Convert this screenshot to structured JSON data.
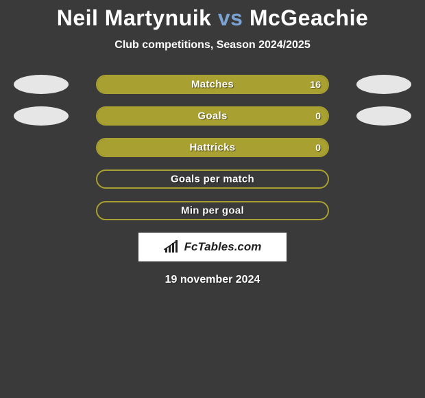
{
  "title": {
    "player1": "Neil Martynuik",
    "vs": "vs",
    "player2": "McGeachie"
  },
  "subtitle": "Club competitions, Season 2024/2025",
  "colors": {
    "bar_border": "#a8a030",
    "bar_fill": "#a8a030",
    "avatar_left": "#e6e6e6",
    "avatar_right": "#e6e6e6",
    "background": "#3a3a3a",
    "vs_color": "#7aa3d4"
  },
  "stats": [
    {
      "label": "Matches",
      "value": "16",
      "fill_pct": 100,
      "show_avatars": true
    },
    {
      "label": "Goals",
      "value": "0",
      "fill_pct": 100,
      "show_avatars": true
    },
    {
      "label": "Hattricks",
      "value": "0",
      "fill_pct": 100,
      "show_avatars": false
    },
    {
      "label": "Goals per match",
      "value": "",
      "fill_pct": 0,
      "show_avatars": false
    },
    {
      "label": "Min per goal",
      "value": "",
      "fill_pct": 0,
      "show_avatars": false
    }
  ],
  "brand": "FcTables.com",
  "date": "19 november 2024"
}
